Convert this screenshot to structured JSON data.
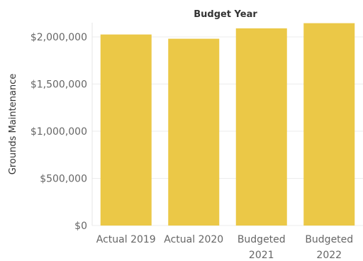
{
  "chart_data": {
    "type": "bar",
    "title": "Budget Year",
    "xlabel": "",
    "ylabel": "Grounds Maintenance",
    "categories": [
      [
        "Actual 2019"
      ],
      [
        "Actual 2020"
      ],
      [
        "Budgeted",
        "2021"
      ],
      [
        "Budgeted",
        "2022"
      ]
    ],
    "values": [
      2025000,
      1980000,
      2090000,
      2145000
    ],
    "ylim": [
      0,
      2150000
    ],
    "yticks": [
      0,
      500000,
      1000000,
      1500000,
      2000000
    ],
    "ytick_labels": [
      "$0",
      "$500,000",
      "$1,000,000",
      "$1,500,000",
      "$2,000,000"
    ],
    "bar_color": "#EBC847",
    "gridlines": true
  }
}
